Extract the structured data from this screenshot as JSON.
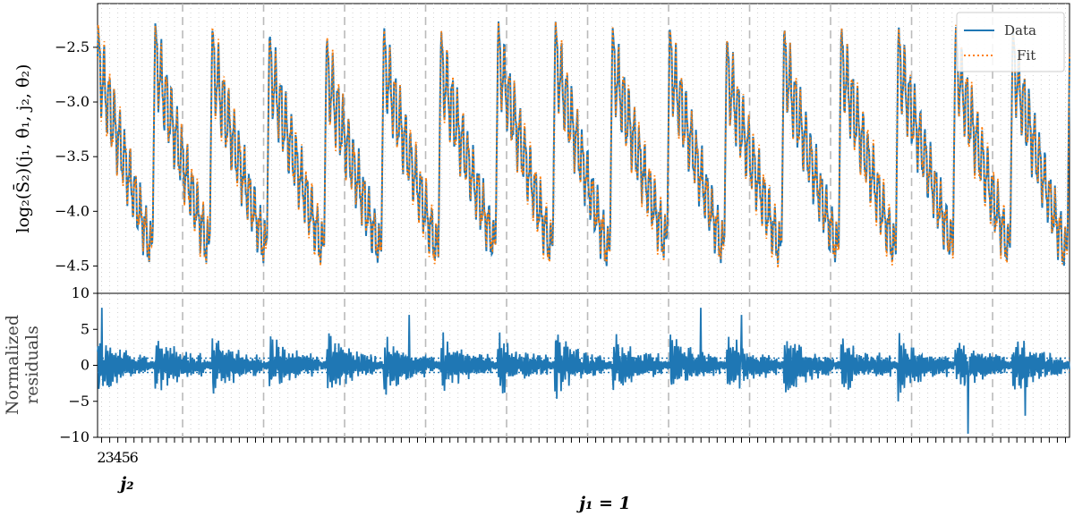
{
  "chart_data": [
    {
      "type": "line",
      "panel": "top",
      "ylabel": "log₂(S̄₂)(j₁, θ₁, j₂, θ₂)",
      "ylim": [
        -4.75,
        -2.1
      ],
      "yticks": [
        -2.5,
        -3.0,
        -3.5,
        -4.0,
        -4.5
      ],
      "ytick_labels": [
        "−2.5",
        "−3.0",
        "−3.5",
        "−4.0",
        "−4.5"
      ],
      "x_range": [
        0,
        119
      ],
      "grid": false,
      "legend": {
        "position": "top-right",
        "entries": [
          "Data",
          "Fit"
        ]
      },
      "series": [
        {
          "name": "Data",
          "color": "#1f77b4",
          "style": "solid"
        },
        {
          "name": "Fit",
          "color": "#ff7f0e",
          "style": "dotted"
        }
      ],
      "block_peaks": [
        -2.6,
        -2.55,
        -2.6,
        -2.65,
        -2.7,
        -2.6,
        -2.65,
        -2.55,
        -2.55,
        -2.6,
        -2.6,
        -2.7,
        -2.6,
        -2.6,
        -2.6,
        -2.6,
        -2.6
      ],
      "block_minima": [
        -4.45,
        -4.45,
        -4.45,
        -4.45,
        -4.45,
        -4.45,
        -4.4,
        -4.45,
        -4.5,
        -4.4,
        -4.45,
        -4.45,
        -4.45,
        -4.45,
        -4.4,
        -4.45,
        -4.5
      ]
    },
    {
      "type": "line",
      "panel": "bottom",
      "ylabel_lines": [
        "Normalized",
        "residuals"
      ],
      "ylim": [
        -10,
        10
      ],
      "yticks": [
        10,
        5,
        0,
        -5,
        -10
      ],
      "ytick_labels": [
        "10",
        "5",
        "0",
        "−5",
        "−10"
      ],
      "reference_lines": [
        1,
        -1
      ],
      "series": [
        {
          "name": "",
          "color": "#1f77b4",
          "style": "solid"
        }
      ],
      "notable_values": [
        {
          "x": 0,
          "y": 8
        },
        {
          "x": 38,
          "y": 7
        },
        {
          "x": 74,
          "y": 8
        },
        {
          "x": 79,
          "y": 7
        },
        {
          "x": 107,
          "y": -9.5
        },
        {
          "x": 114,
          "y": -7
        }
      ]
    }
  ],
  "x_axis": {
    "j2_tick_labels": [
      "2",
      "3",
      "4",
      "5",
      "6"
    ],
    "j2_label": "j₂",
    "j1_label": "j₁ = 1",
    "block_boundaries": [
      10,
      20,
      30,
      40,
      50,
      60,
      70,
      80,
      90,
      100,
      110
    ]
  },
  "colors": {
    "data": "#1f77b4",
    "fit": "#ff7f0e",
    "boundary": "#bbbbbb",
    "minor_grid": "#cccccc"
  }
}
